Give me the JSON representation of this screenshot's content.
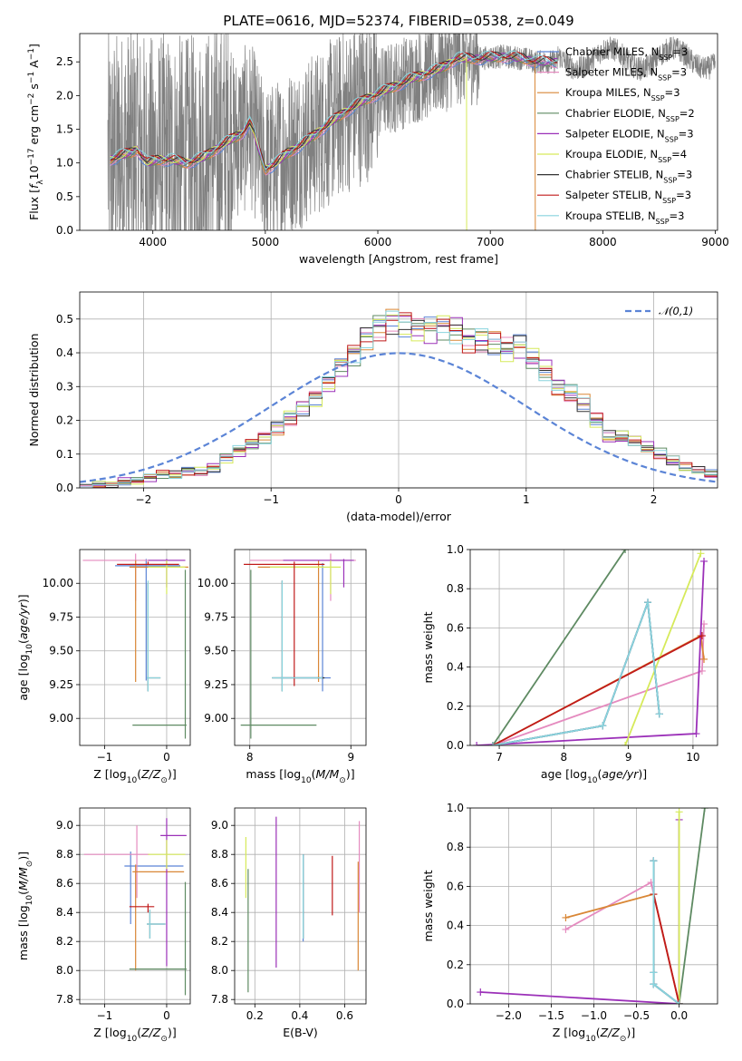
{
  "figure": {
    "title": "PLATE=0616, MJD=52374, FIBERID=0538, z=0.049"
  },
  "colors": {
    "data": "#808080",
    "Chabrier MILES": "#5b84d6",
    "Salpeter MILES": "#e58bbf",
    "Kroupa MILES": "#d98736",
    "Chabrier ELODIE": "#5e8a62",
    "Salpeter ELODIE": "#9b30b8",
    "Kroupa ELODIE": "#d6ea5a",
    "Chabrier STELIB": "#333333",
    "Salpeter STELIB": "#c01a1a",
    "Kroupa STELIB": "#89d4de",
    "normal": "#5b84d6"
  },
  "legend": [
    {
      "model": "Chabrier MILES",
      "n": "3"
    },
    {
      "model": "Salpeter MILES",
      "n": "3"
    },
    {
      "model": "Kroupa MILES",
      "n": "3"
    },
    {
      "model": "Chabrier ELODIE",
      "n": "2"
    },
    {
      "model": "Salpeter ELODIE",
      "n": "3"
    },
    {
      "model": "Kroupa ELODIE",
      "n": "4"
    },
    {
      "model": "Chabrier STELIB",
      "n": "3"
    },
    {
      "model": "Salpeter STELIB",
      "n": "3"
    },
    {
      "model": "Kroupa STELIB",
      "n": "3"
    }
  ],
  "legend_nssp_label": "N",
  "legend_nssp_sub": "SSP",
  "normal_legend_label": "𝒩(0,1)",
  "chart_data": [
    {
      "id": "spectrum",
      "type": "line",
      "xlabel": "wavelength [Angstrom, rest frame]",
      "ylabel": "Flux [f_λ 10^-17 erg cm^-2 s^-1 A^-1]",
      "xlim": [
        3350,
        9020
      ],
      "ylim": [
        0,
        2.92
      ],
      "xticks": [
        4000,
        5000,
        6000,
        7000,
        8000,
        9000
      ],
      "yticks": [
        0.0,
        0.5,
        1.0,
        1.5,
        2.0,
        2.5
      ],
      "legend_position": "upper right",
      "data_range": [
        3600,
        9000
      ],
      "model_continuum": {
        "x": [
          3620,
          3700,
          3800,
          3860,
          3950,
          4050,
          4150,
          4300,
          4450,
          4600,
          4700,
          4800,
          4860,
          4900,
          4950,
          5000,
          5100,
          5200,
          5350,
          5500,
          5700,
          5900,
          6100,
          6300,
          6560,
          6700,
          6900,
          7100,
          7300,
          7400
        ],
        "y": [
          1.05,
          1.1,
          1.15,
          1.2,
          1.0,
          1.05,
          1.05,
          1.0,
          1.08,
          1.25,
          1.35,
          1.45,
          1.6,
          1.45,
          1.15,
          0.9,
          1.0,
          1.15,
          1.3,
          1.5,
          1.75,
          1.95,
          2.1,
          2.25,
          2.4,
          2.55,
          2.55,
          2.58,
          2.55,
          2.5
        ]
      },
      "model_cutoffs": {
        "Kroupa ELODIE": 6790,
        "Kroupa MILES": 7400
      }
    },
    {
      "id": "residuals",
      "type": "line",
      "xlabel": "(data-model)/error",
      "ylabel": "Normed distribution",
      "xlim": [
        -2.5,
        2.5
      ],
      "ylim": [
        0,
        0.58
      ],
      "xticks": [
        -2,
        -1,
        0,
        1,
        2
      ],
      "yticks": [
        0.0,
        0.1,
        0.2,
        0.3,
        0.4,
        0.5
      ],
      "grid": true,
      "legend_position": "upper right",
      "histogram_bins": {
        "start": -2.5,
        "width": 0.1
      },
      "histogram_base": [
        0.0,
        0.01,
        0.01,
        0.02,
        0.02,
        0.03,
        0.04,
        0.04,
        0.05,
        0.05,
        0.06,
        0.09,
        0.11,
        0.13,
        0.15,
        0.18,
        0.21,
        0.24,
        0.27,
        0.31,
        0.36,
        0.4,
        0.45,
        0.48,
        0.5,
        0.49,
        0.47,
        0.47,
        0.48,
        0.47,
        0.44,
        0.44,
        0.43,
        0.41,
        0.42,
        0.38,
        0.35,
        0.3,
        0.28,
        0.25,
        0.2,
        0.15,
        0.15,
        0.14,
        0.12,
        0.1,
        0.08,
        0.06,
        0.05,
        0.04,
        0.03,
        0.03,
        0.02,
        0.02,
        0.01
      ],
      "normal_curve": {
        "mean": 0,
        "sigma": 1
      }
    },
    {
      "id": "age-vs-Z",
      "type": "scatter",
      "xlabel": "Z [log10(Z/Z⊙)]",
      "ylabel": "age [log10(age/yr)]",
      "xlim": [
        -1.4,
        0.38
      ],
      "ylim": [
        8.8,
        10.25
      ],
      "xticks": [
        -1,
        0
      ],
      "yticks": [
        9.0,
        9.25,
        9.5,
        9.75,
        10.0
      ],
      "grid": true,
      "errorbars": [
        {
          "model": "Chabrier MILES",
          "x": -0.33,
          "y": 10.13,
          "xerr": [
            0.5,
            0.55
          ],
          "yerr": [
            0.85,
            0.05
          ]
        },
        {
          "model": "Salpeter MILES",
          "x": -0.5,
          "y": 10.17,
          "xerr": [
            0.85,
            0.8
          ],
          "yerr": [
            0.3,
            0.05
          ]
        },
        {
          "model": "Kroupa MILES",
          "x": -0.5,
          "y": 10.12,
          "xerr": [
            0.1,
            0.85
          ],
          "yerr": [
            0.85,
            0.05
          ]
        },
        {
          "model": "Chabrier ELODIE",
          "x": 0.3,
          "y": 8.95,
          "xerr": [
            0.85,
            0.02
          ],
          "yerr": [
            0.1,
            1.15
          ]
        },
        {
          "model": "Salpeter ELODIE",
          "x": 0.0,
          "y": 10.17,
          "xerr": [
            0.3,
            0.3
          ],
          "yerr": [
            0.2,
            0.01
          ]
        },
        {
          "model": "Kroupa ELODIE",
          "x": 0.0,
          "y": 10.12,
          "xerr": [
            0.3,
            0.3
          ],
          "yerr": [
            0.2,
            0.05
          ]
        },
        {
          "model": "Chabrier STELIB",
          "x": -0.3,
          "y": 9.3,
          "xerr": [
            0.02,
            0.2
          ],
          "yerr": [
            0.1,
            0.7
          ]
        },
        {
          "model": "Salpeter STELIB",
          "x": -0.3,
          "y": 10.14,
          "xerr": [
            0.5,
            0.5
          ],
          "yerr": [
            0.0,
            0.02
          ]
        },
        {
          "model": "Kroupa STELIB",
          "x": -0.3,
          "y": 9.3,
          "xerr": [
            0.02,
            0.2
          ],
          "yerr": [
            0.1,
            0.72
          ]
        }
      ]
    },
    {
      "id": "age-vs-mass",
      "type": "scatter",
      "xlabel": "mass [log10(M/M⊙)]",
      "ylabel": "",
      "xlim": [
        7.85,
        9.15
      ],
      "ylim": [
        8.8,
        10.25
      ],
      "xticks": [
        8,
        9
      ],
      "yticks": [
        9.0,
        9.25,
        9.5,
        9.75,
        10.0
      ],
      "grid": true,
      "errorbars": [
        {
          "model": "Chabrier MILES",
          "x": 8.72,
          "y": 9.3,
          "xerr": [
            0.4,
            0.08
          ],
          "yerr": [
            0.1,
            0.85
          ]
        },
        {
          "model": "Salpeter MILES",
          "x": 8.8,
          "y": 10.17,
          "xerr": [
            0.8,
            0.25
          ],
          "yerr": [
            0.3,
            0.05
          ]
        },
        {
          "model": "Kroupa MILES",
          "x": 8.68,
          "y": 10.12,
          "xerr": [
            0.6,
            0.05
          ],
          "yerr": [
            0.85,
            0.05
          ]
        },
        {
          "model": "Chabrier ELODIE",
          "x": 8.01,
          "y": 8.95,
          "xerr": [
            0.1,
            0.65
          ],
          "yerr": [
            0.1,
            1.15
          ]
        },
        {
          "model": "Salpeter ELODIE",
          "x": 8.93,
          "y": 10.17,
          "xerr": [
            0.6,
            0.1
          ],
          "yerr": [
            0.2,
            0.01
          ]
        },
        {
          "model": "Kroupa ELODIE",
          "x": 8.8,
          "y": 10.12,
          "xerr": [
            0.6,
            0.1
          ],
          "yerr": [
            0.2,
            0.05
          ]
        },
        {
          "model": "Chabrier STELIB",
          "x": 8.32,
          "y": 9.3,
          "xerr": [
            0.1,
            0.42
          ],
          "yerr": [
            0.1,
            0.72
          ]
        },
        {
          "model": "Salpeter STELIB",
          "x": 8.44,
          "y": 10.14,
          "xerr": [
            0.5,
            0.3
          ],
          "yerr": [
            0.9,
            0.02
          ]
        },
        {
          "model": "Kroupa STELIB",
          "x": 8.32,
          "y": 9.3,
          "xerr": [
            0.1,
            0.4
          ],
          "yerr": [
            0.1,
            0.72
          ]
        }
      ]
    },
    {
      "id": "mass-weight-vs-age",
      "type": "line",
      "xlabel": "age [log10(age/yr)]",
      "ylabel": "mass weight",
      "xlim": [
        6.55,
        10.38
      ],
      "ylim": [
        0,
        1.0
      ],
      "xticks": [
        7,
        8,
        9,
        10
      ],
      "yticks": [
        0.0,
        0.2,
        0.4,
        0.6,
        0.8,
        1.0
      ],
      "grid": true,
      "series": [
        {
          "model": "Chabrier MILES",
          "x": [
            6.9,
            8.6,
            9.3,
            9.48
          ],
          "y": [
            0.0,
            0.1,
            0.73,
            0.16
          ]
        },
        {
          "model": "Salpeter MILES",
          "x": [
            6.9,
            10.14,
            10.17
          ],
          "y": [
            0.0,
            0.38,
            0.62
          ]
        },
        {
          "model": "Kroupa MILES",
          "x": [
            6.9,
            10.12,
            10.17
          ],
          "y": [
            0.0,
            0.56,
            0.44
          ]
        },
        {
          "model": "Chabrier ELODIE",
          "x": [
            6.9,
            8.95
          ],
          "y": [
            0.0,
            1.0
          ]
        },
        {
          "model": "Salpeter ELODIE",
          "x": [
            6.65,
            10.05,
            10.17
          ],
          "y": [
            0.0,
            0.06,
            0.94
          ]
        },
        {
          "model": "Kroupa ELODIE",
          "x": [
            8.95,
            10.12
          ],
          "y": [
            0.0,
            0.98
          ]
        },
        {
          "model": "Chabrier STELIB",
          "x": [
            6.9,
            8.6,
            9.3,
            9.48
          ],
          "y": [
            0.0,
            0.1,
            0.73,
            0.16
          ]
        },
        {
          "model": "Salpeter STELIB",
          "x": [
            6.9,
            10.14
          ],
          "y": [
            0.0,
            0.56
          ]
        },
        {
          "model": "Kroupa STELIB",
          "x": [
            6.9,
            8.6,
            9.3,
            9.48
          ],
          "y": [
            0.0,
            0.1,
            0.73,
            0.16
          ]
        }
      ]
    },
    {
      "id": "mass-vs-Z",
      "type": "scatter",
      "xlabel": "Z [log10(Z/Z⊙)]",
      "ylabel": "mass [log10(M/M⊙)]",
      "xlim": [
        -1.4,
        0.38
      ],
      "ylim": [
        7.77,
        9.12
      ],
      "xticks": [
        -1,
        0
      ],
      "yticks": [
        7.8,
        8.0,
        8.2,
        8.4,
        8.6,
        8.8,
        9.0
      ],
      "grid": true,
      "errorbars": [
        {
          "model": "Chabrier MILES",
          "x": -0.58,
          "y": 8.72,
          "xerr": [
            0.1,
            0.85
          ],
          "yerr": [
            0.4,
            0.1
          ]
        },
        {
          "model": "Salpeter MILES",
          "x": -0.48,
          "y": 8.8,
          "xerr": [
            0.85,
            0.2
          ],
          "yerr": [
            0.3,
            0.2
          ]
        },
        {
          "model": "Kroupa MILES",
          "x": -0.5,
          "y": 8.68,
          "xerr": [
            0.05,
            0.78
          ],
          "yerr": [
            0.68,
            0.05
          ]
        },
        {
          "model": "Chabrier ELODIE",
          "x": 0.3,
          "y": 8.01,
          "xerr": [
            0.9,
            0.02
          ],
          "yerr": [
            0.18,
            0.6
          ]
        },
        {
          "model": "Salpeter ELODIE",
          "x": 0.0,
          "y": 8.93,
          "xerr": [
            0.1,
            0.32
          ],
          "yerr": [
            0.9,
            0.12
          ]
        },
        {
          "model": "Kroupa ELODIE",
          "x": 0.0,
          "y": 8.8,
          "xerr": [
            0.3,
            0.3
          ],
          "yerr": [
            0.1,
            0.1
          ]
        },
        {
          "model": "Chabrier STELIB",
          "x": -0.27,
          "y": 8.32,
          "xerr": [
            0.05,
            0.25
          ],
          "yerr": [
            0.1,
            0.1
          ]
        },
        {
          "model": "Salpeter STELIB",
          "x": -0.3,
          "y": 8.44,
          "xerr": [
            0.3,
            0.1
          ],
          "yerr": [
            0.04,
            0.02
          ]
        },
        {
          "model": "Kroupa STELIB",
          "x": -0.27,
          "y": 8.32,
          "xerr": [
            0.05,
            0.25
          ],
          "yerr": [
            0.1,
            0.1
          ]
        }
      ]
    },
    {
      "id": "mass-vs-ebv",
      "type": "scatter",
      "xlabel": "E(B-V)",
      "ylabel": "",
      "xlim": [
        0.11,
        0.695
      ],
      "ylim": [
        7.77,
        9.12
      ],
      "xticks": [
        0.2,
        0.4,
        0.6
      ],
      "yticks": [
        7.8,
        8.0,
        8.2,
        8.4,
        8.6,
        8.8,
        9.0
      ],
      "grid": true,
      "errorbars": [
        {
          "model": "Chabrier MILES",
          "x": 0.415,
          "y": 8.6,
          "xerr": [
            0,
            0
          ],
          "yerr": [
            0.4,
            0.2
          ]
        },
        {
          "model": "Salpeter MILES",
          "x": 0.665,
          "y": 8.7,
          "xerr": [
            0,
            0
          ],
          "yerr": [
            0.3,
            0.33
          ]
        },
        {
          "model": "Kroupa MILES",
          "x": 0.66,
          "y": 8.7,
          "xerr": [
            0,
            0
          ],
          "yerr": [
            0.7,
            0.05
          ]
        },
        {
          "model": "Chabrier ELODIE",
          "x": 0.17,
          "y": 8.6,
          "xerr": [
            0,
            0
          ],
          "yerr": [
            0.75,
            0.1
          ]
        },
        {
          "model": "Salpeter ELODIE",
          "x": 0.295,
          "y": 8.6,
          "xerr": [
            0,
            0
          ],
          "yerr": [
            0.58,
            0.46
          ]
        },
        {
          "model": "Kroupa ELODIE",
          "x": 0.16,
          "y": 8.7,
          "xerr": [
            0,
            0
          ],
          "yerr": [
            0.2,
            0.22
          ]
        },
        {
          "model": "Chabrier STELIB",
          "x": 0.415,
          "y": 8.5,
          "xerr": [
            0,
            0
          ],
          "yerr": [
            0.28,
            0.3
          ]
        },
        {
          "model": "Salpeter STELIB",
          "x": 0.545,
          "y": 8.58,
          "xerr": [
            0,
            0
          ],
          "yerr": [
            0.2,
            0.21
          ]
        },
        {
          "model": "Kroupa STELIB",
          "x": 0.415,
          "y": 8.5,
          "xerr": [
            0,
            0
          ],
          "yerr": [
            0.28,
            0.3
          ]
        }
      ]
    },
    {
      "id": "mass-weight-vs-Z",
      "type": "line",
      "xlabel": "Z [log10(Z/Z⊙)]",
      "ylabel": "mass weight",
      "xlim": [
        -2.45,
        0.45
      ],
      "ylim": [
        0,
        1.0
      ],
      "xticks": [
        -2.0,
        -1.5,
        -1.0,
        -0.5,
        0.0
      ],
      "yticks": [
        0.0,
        0.2,
        0.4,
        0.6,
        0.8,
        1.0
      ],
      "grid": true,
      "series": [
        {
          "model": "Chabrier MILES",
          "x": [
            -0.3,
            -0.3,
            -0.3,
            0.0
          ],
          "y": [
            0.73,
            0.16,
            0.1,
            0.0
          ]
        },
        {
          "model": "Salpeter MILES",
          "x": [
            -1.33,
            -0.33,
            0.0
          ],
          "y": [
            0.38,
            0.62,
            0.0
          ]
        },
        {
          "model": "Kroupa MILES",
          "x": [
            -1.33,
            -0.3,
            0.0
          ],
          "y": [
            0.44,
            0.56,
            0.0
          ]
        },
        {
          "model": "Chabrier ELODIE",
          "x": [
            0.0,
            0.3
          ],
          "y": [
            0.0,
            1.0
          ]
        },
        {
          "model": "Salpeter ELODIE",
          "x": [
            -2.33,
            0.0,
            0.0
          ],
          "y": [
            0.06,
            0.0,
            0.94
          ]
        },
        {
          "model": "Kroupa ELODIE",
          "x": [
            0.0,
            0.0
          ],
          "y": [
            0.0,
            0.98
          ]
        },
        {
          "model": "Chabrier STELIB",
          "x": [
            -0.3,
            -0.3,
            -0.3,
            0.0
          ],
          "y": [
            0.73,
            0.16,
            0.1,
            0.0
          ]
        },
        {
          "model": "Salpeter STELIB",
          "x": [
            -0.3,
            0.0
          ],
          "y": [
            0.56,
            0.0
          ]
        },
        {
          "model": "Kroupa STELIB",
          "x": [
            -0.3,
            -0.3,
            -0.3,
            0.0
          ],
          "y": [
            0.73,
            0.16,
            0.1,
            0.0
          ]
        }
      ]
    }
  ]
}
